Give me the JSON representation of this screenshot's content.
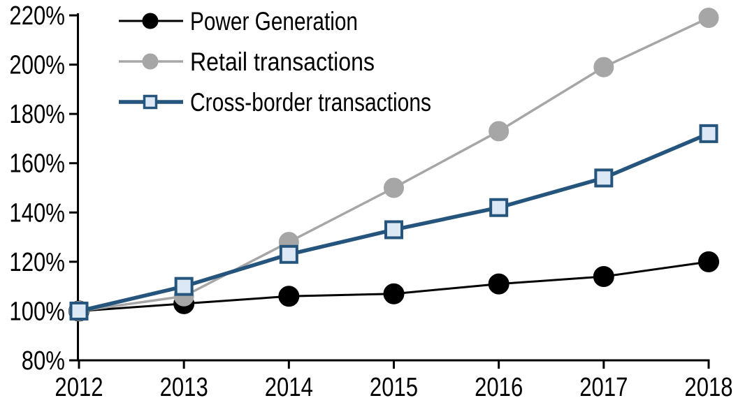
{
  "chart_data": {
    "type": "line",
    "title": "",
    "xlabel": "",
    "ylabel": "",
    "x": [
      2012,
      2013,
      2014,
      2015,
      2016,
      2017,
      2018
    ],
    "x_tick_labels": [
      "2012",
      "2013",
      "2014",
      "2015",
      "2016",
      "2017",
      "2018"
    ],
    "y_tick_labels": [
      "220%",
      "200%",
      "180%",
      "160%",
      "140%",
      "120%",
      "100%",
      "80%"
    ],
    "ylim": [
      80,
      220
    ],
    "ytick_step": 20,
    "grid": false,
    "legend_position": "top-left",
    "axis_color": "#000000",
    "background_color": "#FFFFFF",
    "series": [
      {
        "name": "Power Generation",
        "values": [
          100,
          103,
          106,
          107,
          111,
          114,
          120
        ],
        "line_color": "#000000",
        "line_width": 3,
        "marker": "circle",
        "marker_fill": "#000000",
        "marker_stroke": "#000000",
        "marker_size": 14.5
      },
      {
        "name": "Retail transactions",
        "values": [
          100,
          106,
          128,
          150,
          173,
          199,
          219
        ],
        "line_color": "#A6A6A6",
        "line_width": 3.5,
        "marker": "circle",
        "marker_fill": "#A6A6A6",
        "marker_stroke": "#A6A6A6",
        "marker_size": 14
      },
      {
        "name": "Cross-border transactions",
        "values": [
          100,
          110,
          123,
          133,
          142,
          154,
          172
        ],
        "line_color": "#25547C",
        "line_width": 5.5,
        "marker": "square",
        "marker_fill": "#DCE8F5",
        "marker_stroke": "#25547C",
        "marker_size": 23
      }
    ]
  }
}
